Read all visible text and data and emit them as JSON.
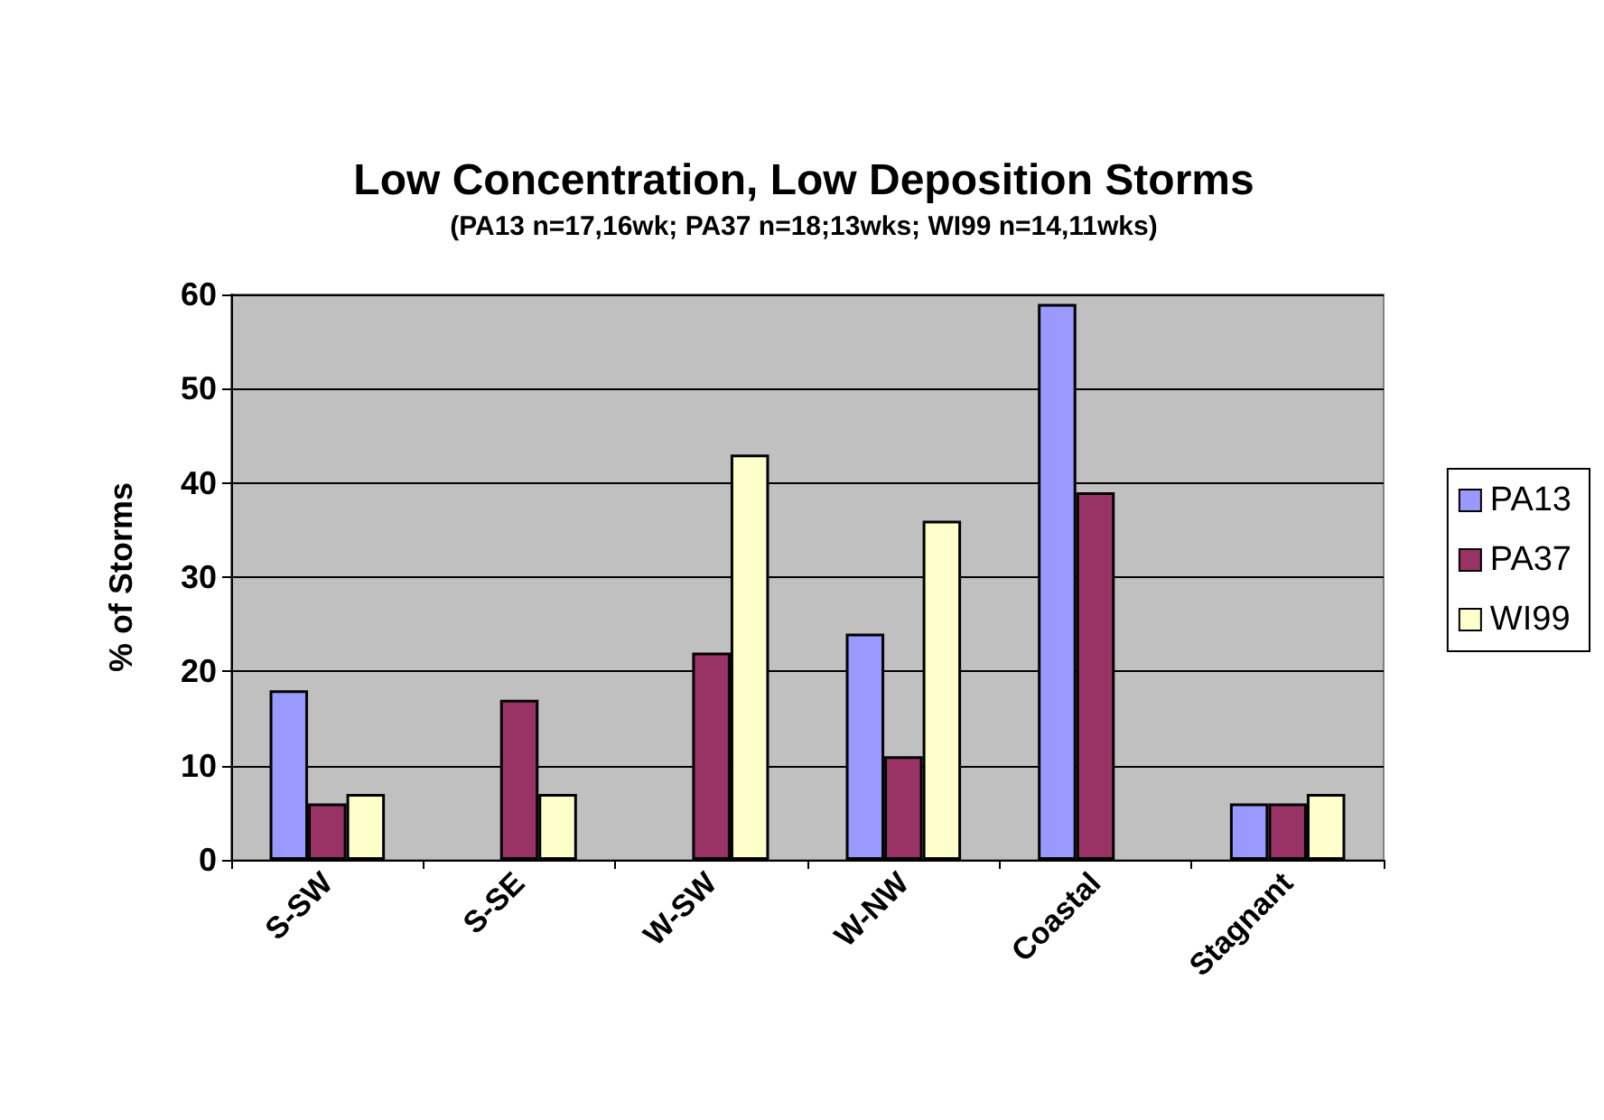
{
  "chart_data": {
    "type": "bar",
    "title": "Low Concentration, Low Deposition Storms",
    "subtitle": "(PA13 n=17,16wk; PA37 n=18;13wks; WI99 n=14,11wks)",
    "ylabel": "% of Storms",
    "categories": [
      "S-SW",
      "S-SE",
      "W-SW",
      "W-NW",
      "Coastal",
      "Stagnant"
    ],
    "series": [
      {
        "name": "PA13",
        "color": "#9999ff",
        "values": [
          18,
          null,
          null,
          24,
          59,
          6
        ]
      },
      {
        "name": "PA37",
        "color": "#993366",
        "values": [
          6,
          17,
          22,
          11,
          39,
          6
        ]
      },
      {
        "name": "WI99",
        "color": "#ffffcc",
        "values": [
          7,
          7,
          43,
          36,
          null,
          7
        ]
      }
    ],
    "ylim": [
      0,
      60
    ],
    "yticks": [
      0,
      10,
      20,
      30,
      40,
      50,
      60
    ],
    "grid": "y",
    "legend": "right"
  }
}
